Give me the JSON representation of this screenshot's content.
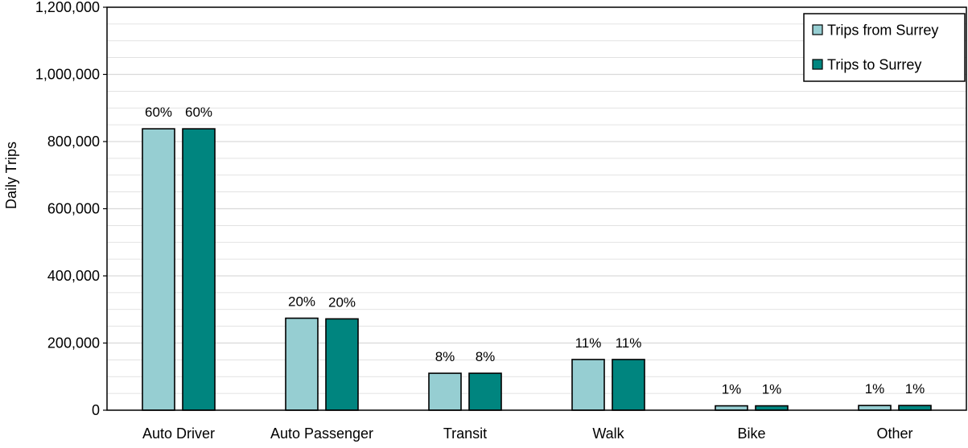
{
  "colors": {
    "series_1": "#96ced2",
    "series_2": "#00857f",
    "grid": "#d9d9d9",
    "axis": "#000000"
  },
  "chart_data": {
    "type": "bar",
    "title": "",
    "xlabel": "",
    "ylabel": "Daily Trips",
    "ylim": [
      0,
      1200000
    ],
    "yticks": [
      0,
      200000,
      400000,
      600000,
      800000,
      1000000,
      1200000
    ],
    "ytick_labels": [
      "0",
      "200,000",
      "400,000",
      "600,000",
      "800,000",
      "1,000,000",
      "1,200,000"
    ],
    "grid": true,
    "legend_position": "top-right",
    "categories": [
      "Auto Driver",
      "Auto Passenger",
      "Transit",
      "Walk",
      "Bike",
      "Other"
    ],
    "series": [
      {
        "name": "Trips from Surrey",
        "values": [
          838000,
          274000,
          110000,
          151000,
          13000,
          14000
        ],
        "labels": [
          "60%",
          "20%",
          "8%",
          "11%",
          "1%",
          "1%"
        ]
      },
      {
        "name": "Trips to Surrey",
        "values": [
          838000,
          272000,
          110000,
          151000,
          13000,
          14000
        ],
        "labels": [
          "60%",
          "20%",
          "8%",
          "11%",
          "1%",
          "1%"
        ]
      }
    ]
  }
}
